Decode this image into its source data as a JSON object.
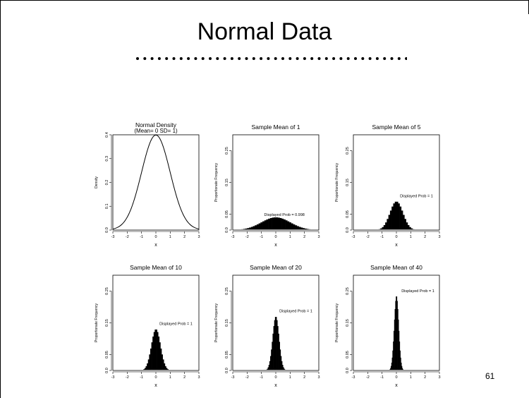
{
  "slide": {
    "title": "Normal Data",
    "page_number": "61"
  },
  "chart_data": [
    {
      "type": "line",
      "title": "Normal Density",
      "subtitle": "(Mean= 0 SD= 1)",
      "xlabel": "x",
      "ylabel": "Density",
      "xlim": [
        -3,
        3
      ],
      "ylim": [
        0,
        0.4
      ],
      "xticks": [
        "-3",
        "-2",
        "-1",
        "0",
        "1",
        "2",
        "3"
      ],
      "yticks": [
        "0.0",
        "0.1",
        "0.2",
        "0.3",
        "0.4"
      ],
      "ytick_values": [
        0,
        0.1,
        0.2,
        0.3,
        0.4
      ],
      "mean": 0,
      "sd": 1,
      "annotation": ""
    },
    {
      "type": "bar",
      "title": "Sample Mean of 1",
      "xlabel": "x",
      "ylabel": "Proportionate Frequency",
      "xlim": [
        -3,
        3
      ],
      "ylim": [
        0,
        0.3
      ],
      "xticks": [
        "-3",
        "-2",
        "-1",
        "0",
        "1",
        "2",
        "3"
      ],
      "yticks": [
        "0.0",
        "0.05",
        "0.15",
        "0.25"
      ],
      "ytick_values": [
        0,
        0.05,
        0.15,
        0.25
      ],
      "sample_size": 1,
      "peak": 0.04,
      "annotation": "Displayed Prob = 0.998"
    },
    {
      "type": "bar",
      "title": "Sample Mean of 5",
      "xlabel": "x",
      "ylabel": "Proportionate Frequency",
      "xlim": [
        -3,
        3
      ],
      "ylim": [
        0,
        0.3
      ],
      "xticks": [
        "-3",
        "-2",
        "-1",
        "0",
        "1",
        "2",
        "3"
      ],
      "yticks": [
        "0.0",
        "0.05",
        "0.15",
        "0.25"
      ],
      "ytick_values": [
        0,
        0.05,
        0.15,
        0.25
      ],
      "sample_size": 5,
      "peak": 0.09,
      "annotation": "Displayed Prob = 1"
    },
    {
      "type": "bar",
      "title": "Sample Mean of 10",
      "xlabel": "x",
      "ylabel": "Proportionate Frequency",
      "xlim": [
        -3,
        3
      ],
      "ylim": [
        0,
        0.3
      ],
      "xticks": [
        "-3",
        "-2",
        "-1",
        "0",
        "1",
        "2",
        "3"
      ],
      "yticks": [
        "0.0",
        "0.05",
        "0.15",
        "0.25"
      ],
      "ytick_values": [
        0,
        0.05,
        0.15,
        0.25
      ],
      "sample_size": 10,
      "peak": 0.13,
      "annotation": "Displayed Prob = 1"
    },
    {
      "type": "bar",
      "title": "Sample Mean of 20",
      "xlabel": "x",
      "ylabel": "Proportionate Frequency",
      "xlim": [
        -3,
        3
      ],
      "ylim": [
        0,
        0.3
      ],
      "xticks": [
        "-3",
        "-2",
        "-1",
        "0",
        "1",
        "2",
        "3"
      ],
      "yticks": [
        "0.0",
        "0.05",
        "0.15",
        "0.25"
      ],
      "ytick_values": [
        0,
        0.05,
        0.15,
        0.25
      ],
      "sample_size": 20,
      "peak": 0.17,
      "annotation": "Displayed Prob = 1"
    },
    {
      "type": "bar",
      "title": "Sample Mean of 40",
      "xlabel": "x",
      "ylabel": "Proportionate Frequency",
      "xlim": [
        -3,
        3
      ],
      "ylim": [
        0,
        0.3
      ],
      "xticks": [
        "-3",
        "-2",
        "-1",
        "0",
        "1",
        "2",
        "3"
      ],
      "yticks": [
        "0.0",
        "0.05",
        "0.15",
        "0.25"
      ],
      "ytick_values": [
        0,
        0.05,
        0.15,
        0.25
      ],
      "sample_size": 40,
      "peak": 0.235,
      "annotation": "Displayed Prob = 1"
    }
  ]
}
